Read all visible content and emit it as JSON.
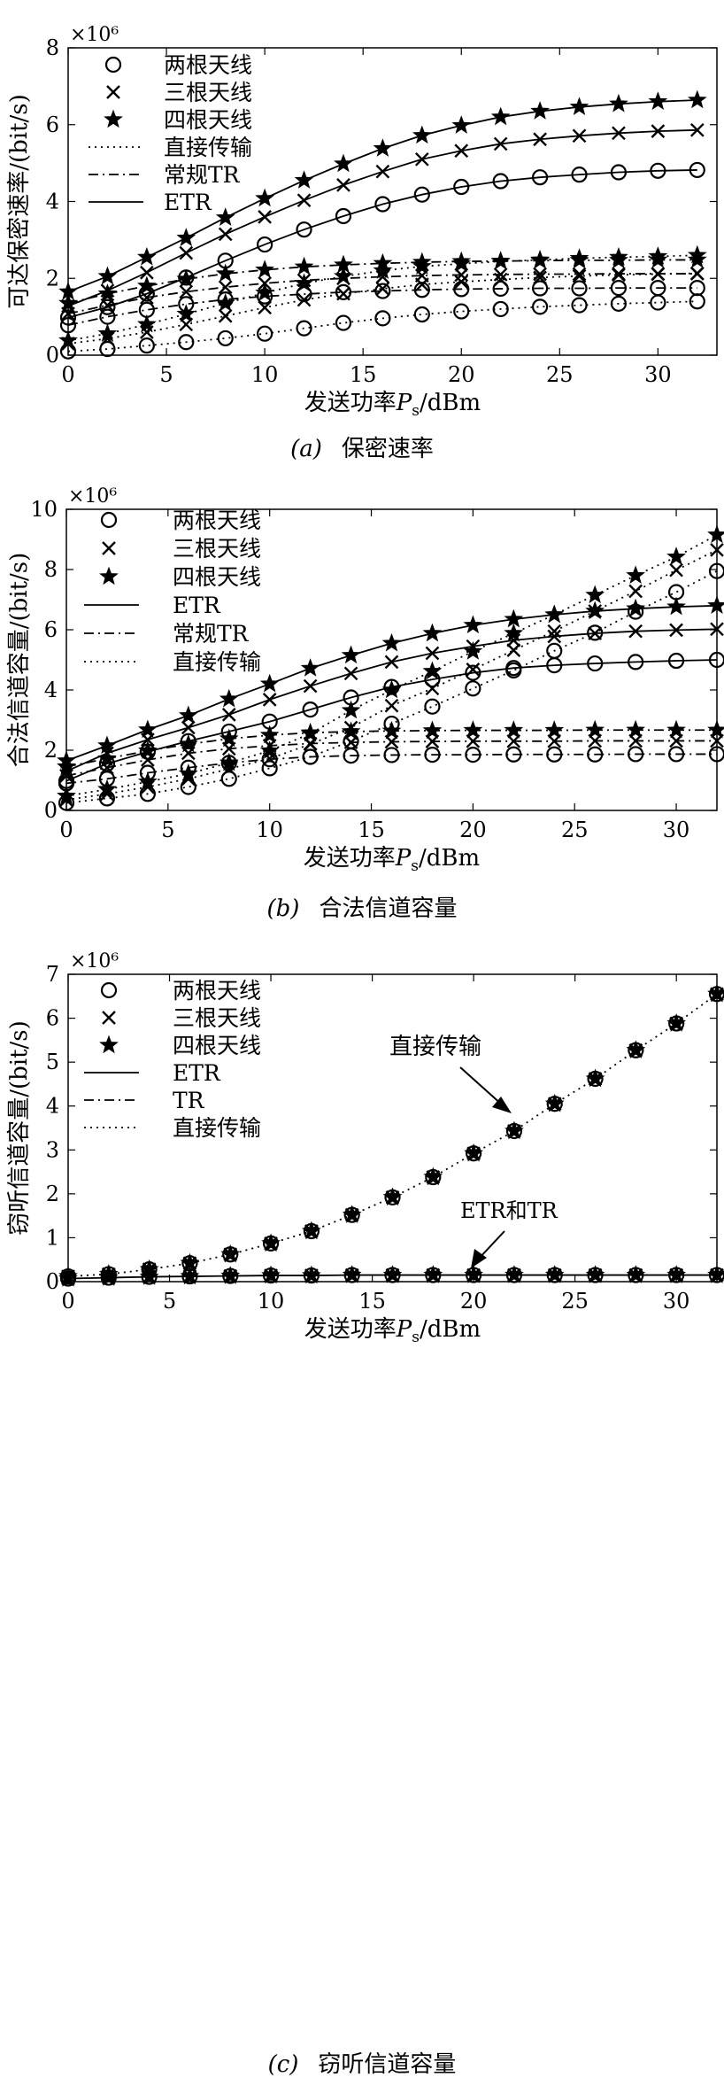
{
  "charts": [
    {
      "caption_label": "(a)",
      "caption_text": "保密速率",
      "multiplier": "×10⁶",
      "xlabel": "发送功率P_s/dBm",
      "ylabel": "可达保密速率/(bit/s)",
      "yticks": [
        "0",
        "2",
        "4",
        "6",
        "8"
      ],
      "xticks": [
        "0",
        "5",
        "10",
        "15",
        "20",
        "25",
        "30"
      ]
    },
    {
      "caption_label": "(b)",
      "caption_text": "合法信道容量",
      "multiplier": "×10⁶",
      "xlabel": "发送功率P_s/dBm",
      "ylabel": "合法信道容量/(bit/s)",
      "yticks": [
        "0",
        "2",
        "4",
        "6",
        "8",
        "10"
      ],
      "xticks": [
        "0",
        "5",
        "10",
        "15",
        "20",
        "25",
        "30"
      ]
    },
    {
      "caption_label": "(c)",
      "caption_text": "窃听信道容量",
      "multiplier": "×10⁶",
      "xlabel": "发送功率P_s/dBm",
      "ylabel": "窃听信道容量/(bit/s)",
      "yticks": [
        "0",
        "1",
        "2",
        "3",
        "4",
        "5",
        "6",
        "7"
      ],
      "xticks": [
        "0",
        "5",
        "10",
        "15",
        "20",
        "25",
        "30"
      ],
      "annotations": [
        "直接传输",
        "ETR和TR"
      ]
    }
  ],
  "chart_data": [
    {
      "type": "line",
      "title": "",
      "xlabel": "发送功率P_s/dBm",
      "ylabel": "可达保密速率/(bit/s)",
      "y_multiplier": "×10⁶",
      "xlim": [
        0,
        33
      ],
      "ylim": [
        0,
        8
      ],
      "x": [
        0,
        2,
        4,
        6,
        8,
        10,
        12,
        14,
        16,
        18,
        20,
        22,
        24,
        26,
        28,
        30,
        32
      ],
      "legend": {
        "placement": "top-left",
        "entries": [
          "两根天线",
          "三根天线",
          "四根天线",
          "直接传输",
          "常规TR",
          "ETR"
        ]
      },
      "series": [
        {
          "antennas": 2,
          "scheme": "ETR",
          "values": [
            0.98,
            1.25,
            1.6,
            2.02,
            2.46,
            2.88,
            3.27,
            3.62,
            3.93,
            4.18,
            4.38,
            4.53,
            4.63,
            4.7,
            4.76,
            4.8,
            4.82
          ]
        },
        {
          "antennas": 3,
          "scheme": "ETR",
          "values": [
            1.28,
            1.68,
            2.15,
            2.66,
            3.15,
            3.6,
            4.03,
            4.43,
            4.78,
            5.1,
            5.32,
            5.5,
            5.62,
            5.71,
            5.78,
            5.83,
            5.86
          ]
        },
        {
          "antennas": 4,
          "scheme": "ETR",
          "values": [
            1.65,
            2.05,
            2.55,
            3.05,
            3.58,
            4.08,
            4.55,
            4.98,
            5.38,
            5.72,
            5.98,
            6.2,
            6.35,
            6.46,
            6.54,
            6.6,
            6.64
          ]
        },
        {
          "antennas": 2,
          "scheme": "常规TR",
          "values": [
            0.78,
            1.0,
            1.18,
            1.33,
            1.45,
            1.53,
            1.59,
            1.64,
            1.67,
            1.7,
            1.72,
            1.73,
            1.74,
            1.74,
            1.75,
            1.75,
            1.75
          ]
        },
        {
          "antennas": 3,
          "scheme": "常规TR",
          "values": [
            1.08,
            1.3,
            1.5,
            1.65,
            1.77,
            1.87,
            1.95,
            2.0,
            2.04,
            2.07,
            2.09,
            2.1,
            2.11,
            2.11,
            2.12,
            2.12,
            2.12
          ]
        },
        {
          "antennas": 4,
          "scheme": "常规TR",
          "values": [
            1.35,
            1.6,
            1.8,
            1.98,
            2.12,
            2.22,
            2.3,
            2.35,
            2.39,
            2.42,
            2.44,
            2.45,
            2.46,
            2.47,
            2.47,
            2.48,
            2.48
          ]
        },
        {
          "antennas": 2,
          "scheme": "直接传输",
          "values": [
            0.1,
            0.16,
            0.25,
            0.34,
            0.44,
            0.56,
            0.7,
            0.84,
            0.96,
            1.06,
            1.14,
            1.2,
            1.26,
            1.3,
            1.34,
            1.37,
            1.4
          ]
        },
        {
          "antennas": 3,
          "scheme": "直接传输",
          "values": [
            0.3,
            0.43,
            0.6,
            0.8,
            1.02,
            1.24,
            1.44,
            1.6,
            1.73,
            1.84,
            1.91,
            1.97,
            2.02,
            2.06,
            2.09,
            2.11,
            2.13
          ]
        },
        {
          "antennas": 4,
          "scheme": "直接传输",
          "values": [
            0.38,
            0.56,
            0.8,
            1.07,
            1.35,
            1.62,
            1.87,
            2.05,
            2.2,
            2.31,
            2.38,
            2.44,
            2.48,
            2.52,
            2.55,
            2.57,
            2.6
          ]
        }
      ]
    },
    {
      "type": "line",
      "title": "",
      "xlabel": "发送功率P_s/dBm",
      "ylabel": "合法信道容量/(bit/s)",
      "y_multiplier": "×10⁶",
      "xlim": [
        0,
        32
      ],
      "ylim": [
        0,
        10
      ],
      "x": [
        0,
        2,
        4,
        6,
        8,
        10,
        12,
        14,
        16,
        18,
        20,
        22,
        24,
        26,
        28,
        30,
        32
      ],
      "legend": {
        "placement": "top-left",
        "entries": [
          "两根天线",
          "三根天线",
          "四根天线",
          "ETR",
          "常规TR",
          "直接传输"
        ]
      },
      "series": [
        {
          "antennas": 2,
          "scheme": "ETR",
          "values": [
            0.98,
            1.55,
            1.95,
            2.3,
            2.62,
            2.95,
            3.35,
            3.75,
            4.1,
            4.35,
            4.57,
            4.73,
            4.82,
            4.88,
            4.93,
            4.97,
            5.0
          ]
        },
        {
          "antennas": 3,
          "scheme": "ETR",
          "values": [
            1.3,
            1.9,
            2.35,
            2.75,
            3.18,
            3.68,
            4.13,
            4.55,
            4.93,
            5.22,
            5.45,
            5.65,
            5.78,
            5.88,
            5.95,
            5.99,
            6.02
          ]
        },
        {
          "antennas": 4,
          "scheme": "ETR",
          "values": [
            1.65,
            2.15,
            2.68,
            3.15,
            3.7,
            4.2,
            4.72,
            5.15,
            5.55,
            5.88,
            6.15,
            6.35,
            6.5,
            6.62,
            6.7,
            6.76,
            6.8
          ]
        },
        {
          "antennas": 2,
          "scheme": "常规TR",
          "values": [
            0.9,
            1.05,
            1.25,
            1.42,
            1.58,
            1.7,
            1.78,
            1.82,
            1.84,
            1.85,
            1.85,
            1.86,
            1.86,
            1.86,
            1.87,
            1.87,
            1.87
          ]
        },
        {
          "antennas": 3,
          "scheme": "常规TR",
          "values": [
            1.15,
            1.42,
            1.68,
            1.9,
            2.05,
            2.15,
            2.22,
            2.26,
            2.28,
            2.29,
            2.3,
            2.3,
            2.3,
            2.31,
            2.31,
            2.31,
            2.31
          ]
        },
        {
          "antennas": 4,
          "scheme": "常规TR",
          "values": [
            1.45,
            1.72,
            1.98,
            2.2,
            2.38,
            2.5,
            2.58,
            2.62,
            2.64,
            2.65,
            2.66,
            2.66,
            2.66,
            2.67,
            2.67,
            2.67,
            2.67
          ]
        },
        {
          "antennas": 2,
          "scheme": "直接传输",
          "values": [
            0.25,
            0.4,
            0.55,
            0.78,
            1.05,
            1.4,
            1.78,
            2.3,
            2.88,
            3.45,
            4.05,
            4.65,
            5.3,
            5.9,
            6.6,
            7.25,
            7.95
          ]
        },
        {
          "antennas": 3,
          "scheme": "直接传输",
          "values": [
            0.35,
            0.55,
            0.78,
            1.05,
            1.38,
            1.72,
            2.2,
            2.75,
            3.48,
            4.05,
            4.68,
            5.32,
            5.95,
            6.62,
            7.28,
            7.98,
            8.65
          ]
        },
        {
          "antennas": 4,
          "scheme": "直接传输",
          "values": [
            0.48,
            0.7,
            0.95,
            1.22,
            1.58,
            1.98,
            2.55,
            3.32,
            4.0,
            4.62,
            5.28,
            5.88,
            6.5,
            7.15,
            7.8,
            8.42,
            9.15
          ]
        }
      ]
    },
    {
      "type": "line",
      "title": "",
      "xlabel": "发送功率P_s/dBm",
      "ylabel": "窃听信道容量/(bit/s)",
      "y_multiplier": "×10⁶",
      "xlim": [
        0,
        32
      ],
      "ylim": [
        0,
        7
      ],
      "x": [
        0,
        2,
        4,
        6,
        8,
        10,
        12,
        14,
        16,
        18,
        20,
        22,
        24,
        26,
        28,
        30,
        32
      ],
      "legend": {
        "placement": "top-left",
        "entries": [
          "两根天线",
          "三根天线",
          "四根天线",
          "ETR",
          "TR",
          "直接传输"
        ]
      },
      "annotations": [
        "直接传输",
        "ETR和TR"
      ],
      "series": [
        {
          "antennas": "2,3,4",
          "scheme": "ETR/TR",
          "values": [
            0.07,
            0.09,
            0.11,
            0.12,
            0.13,
            0.14,
            0.14,
            0.15,
            0.15,
            0.15,
            0.15,
            0.15,
            0.15,
            0.15,
            0.15,
            0.15,
            0.15
          ]
        },
        {
          "antennas": "2,3,4",
          "scheme": "直接传输",
          "values": [
            0.12,
            0.17,
            0.28,
            0.42,
            0.62,
            0.87,
            1.15,
            1.52,
            1.92,
            2.38,
            2.92,
            3.43,
            4.05,
            4.62,
            5.27,
            5.88,
            6.55
          ]
        }
      ]
    }
  ]
}
